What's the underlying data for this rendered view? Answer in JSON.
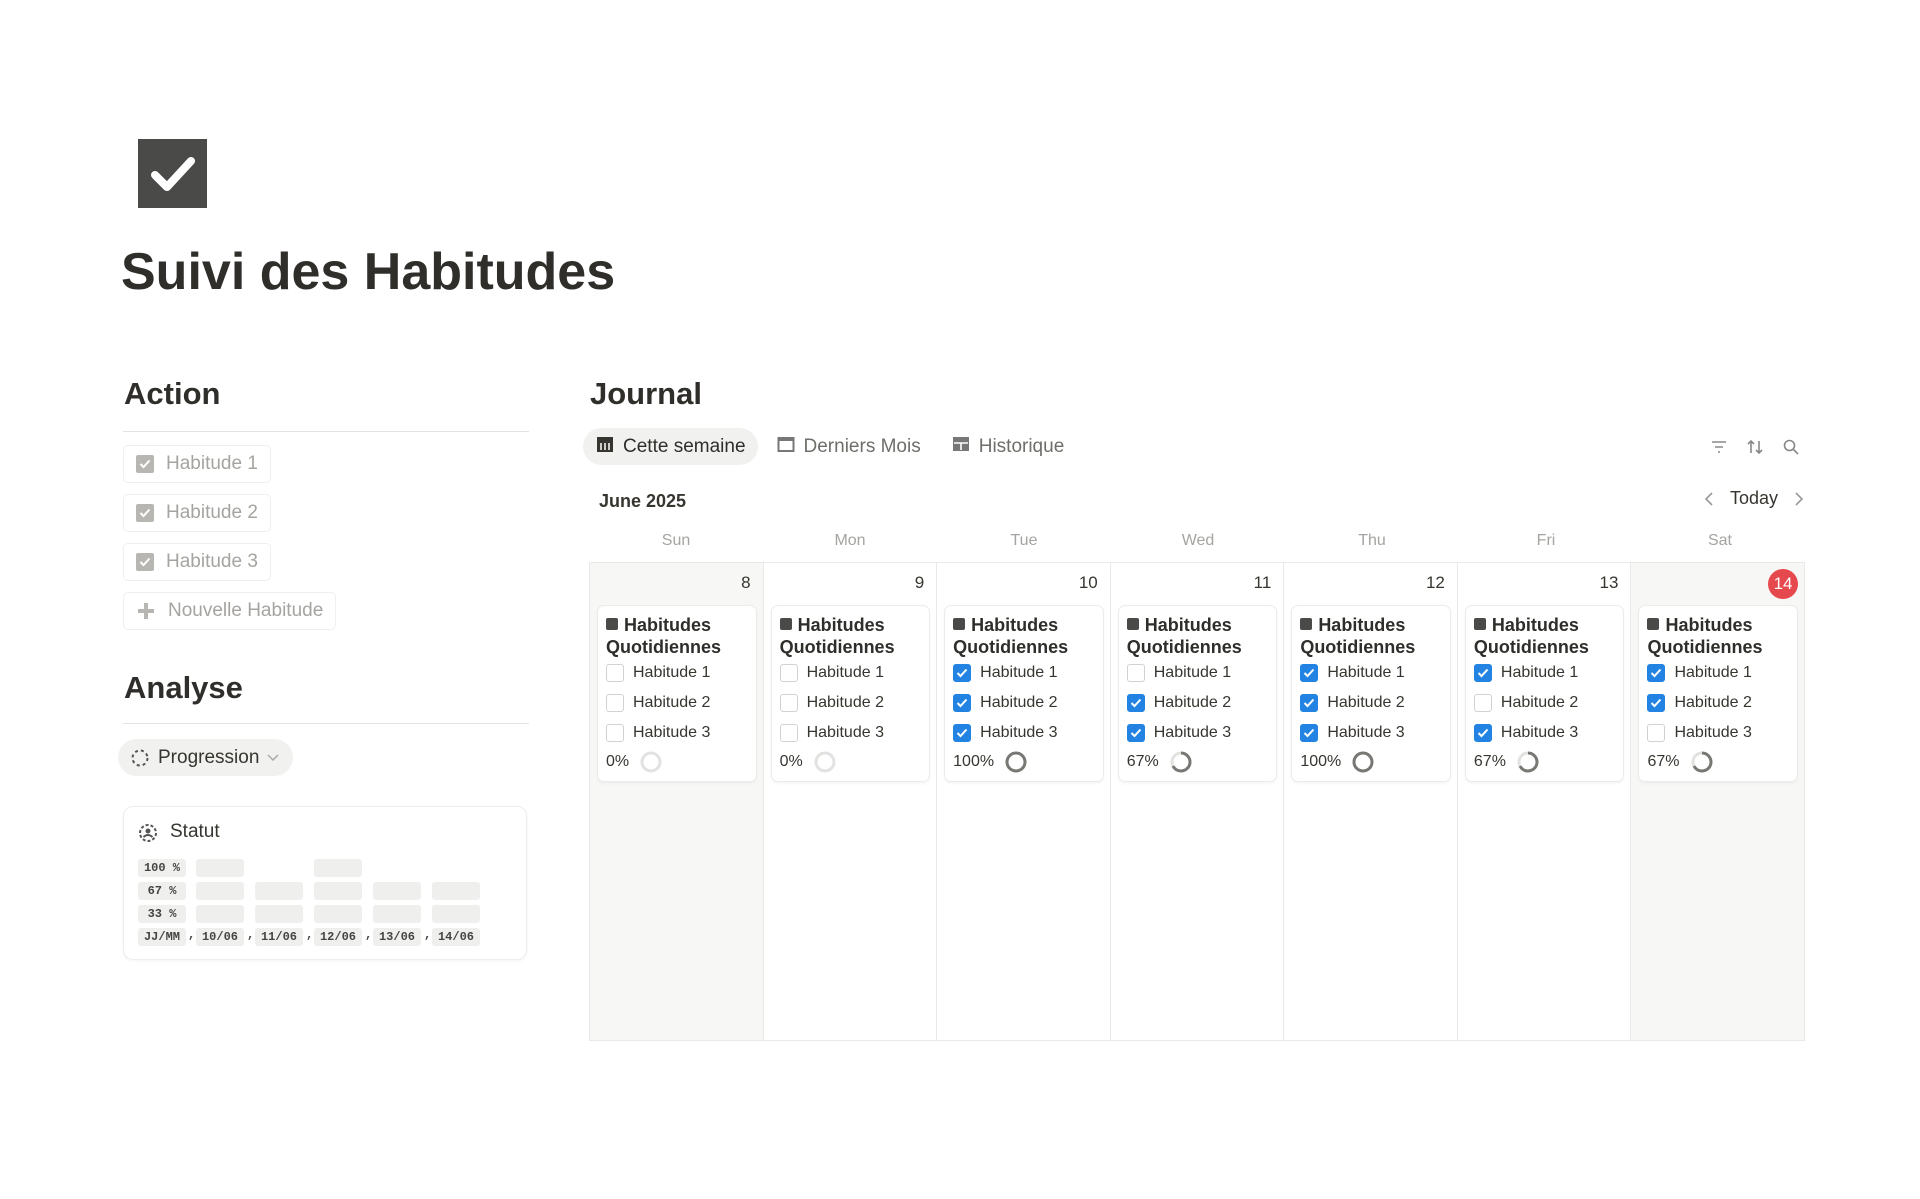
{
  "page": {
    "title": "Suivi des Habitudes",
    "icon": "checkbox-icon"
  },
  "action": {
    "heading": "Action",
    "items": [
      "Habitude 1",
      "Habitude 2",
      "Habitude 3"
    ],
    "new_label": "Nouvelle Habitude"
  },
  "analyse": {
    "heading": "Analyse",
    "view_label": "Progression",
    "statut": {
      "title": "Statut",
      "rows": [
        "100 %",
        "67 %",
        "33 %"
      ],
      "axis_label": "JJ/MM",
      "dates": [
        "10/06",
        "11/06",
        "12/06",
        "13/06",
        "14/06"
      ],
      "values": [
        100,
        67,
        100,
        67,
        67
      ]
    }
  },
  "journal": {
    "heading": "Journal",
    "tabs": [
      {
        "label": "Cette semaine",
        "icon": "calendar-week-icon"
      },
      {
        "label": "Derniers Mois",
        "icon": "calendar-icon"
      },
      {
        "label": "Historique",
        "icon": "table-icon"
      }
    ],
    "month": "June 2025",
    "today_label": "Today",
    "weekdays": [
      "Sun",
      "Mon",
      "Tue",
      "Wed",
      "Thu",
      "Fri",
      "Sat"
    ],
    "card_title": "Habitudes Quotidiennes",
    "habits": [
      "Habitude 1",
      "Habitude 2",
      "Habitude 3"
    ],
    "days": [
      {
        "num": "8",
        "checks": [
          false,
          false,
          false
        ],
        "pct": "0%",
        "value": 0
      },
      {
        "num": "9",
        "checks": [
          false,
          false,
          false
        ],
        "pct": "0%",
        "value": 0
      },
      {
        "num": "10",
        "checks": [
          true,
          true,
          true
        ],
        "pct": "100%",
        "value": 100
      },
      {
        "num": "11",
        "checks": [
          false,
          true,
          true
        ],
        "pct": "67%",
        "value": 67
      },
      {
        "num": "12",
        "checks": [
          true,
          true,
          true
        ],
        "pct": "100%",
        "value": 100
      },
      {
        "num": "13",
        "checks": [
          true,
          false,
          true
        ],
        "pct": "67%",
        "value": 67
      },
      {
        "num": "14",
        "checks": [
          true,
          true,
          false
        ],
        "pct": "67%",
        "value": 67,
        "today": true
      }
    ]
  },
  "colors": {
    "accent": "#2383e2",
    "today": "#e5484d"
  }
}
